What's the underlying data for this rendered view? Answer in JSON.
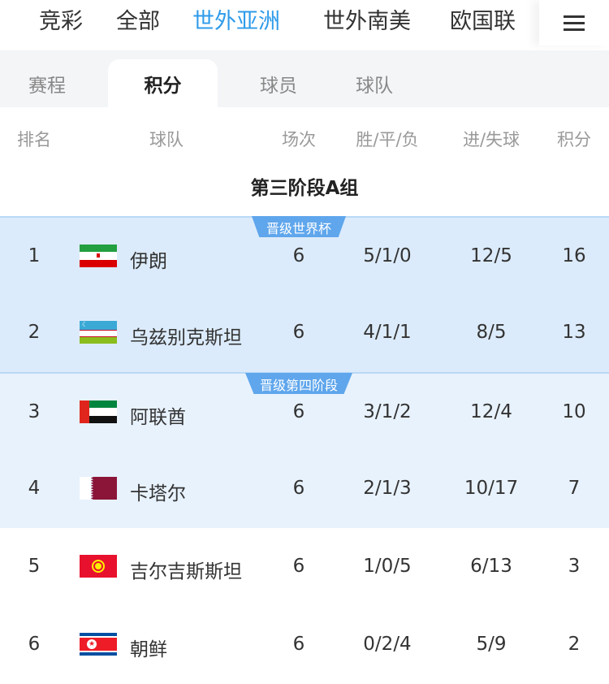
{
  "topnav": {
    "items": [
      "竞彩",
      "全部",
      "世外亚洲",
      "世外南美",
      "欧国联"
    ],
    "active": "世外亚洲",
    "menu_icon": "hamburger-menu-icon"
  },
  "tabs": {
    "items": [
      "赛程",
      "积分",
      "球员",
      "球队"
    ],
    "active": "积分"
  },
  "table": {
    "headers": [
      "排名",
      "球队",
      "场次",
      "胜/平/负",
      "进/失球",
      "积分"
    ],
    "group_title": "第三阶段A组",
    "zones": [
      {
        "label": "晋级世界杯",
        "color": "#dcebfb"
      },
      {
        "label": "晋级第四阶段",
        "color": "#e8f2fd"
      }
    ],
    "rows": [
      {
        "rank": "1",
        "team": "伊朗",
        "flag": "iran",
        "played": "6",
        "wdl": "5/1/0",
        "goals": "12/5",
        "points": "16"
      },
      {
        "rank": "2",
        "team": "乌兹别克斯坦",
        "flag": "uzbekistan",
        "played": "6",
        "wdl": "4/1/1",
        "goals": "8/5",
        "points": "13"
      },
      {
        "rank": "3",
        "team": "阿联酋",
        "flag": "uae",
        "played": "6",
        "wdl": "3/1/2",
        "goals": "12/4",
        "points": "10"
      },
      {
        "rank": "4",
        "team": "卡塔尔",
        "flag": "qatar",
        "played": "6",
        "wdl": "2/1/3",
        "goals": "10/17",
        "points": "7"
      },
      {
        "rank": "5",
        "team": "吉尔吉斯斯坦",
        "flag": "kyrgyzstan",
        "played": "6",
        "wdl": "1/0/5",
        "goals": "6/13",
        "points": "3"
      },
      {
        "rank": "6",
        "team": "朝鲜",
        "flag": "north-korea",
        "played": "6",
        "wdl": "0/2/4",
        "goals": "5/9",
        "points": "2"
      }
    ]
  },
  "colors": {
    "accent": "#2f9bea"
  }
}
